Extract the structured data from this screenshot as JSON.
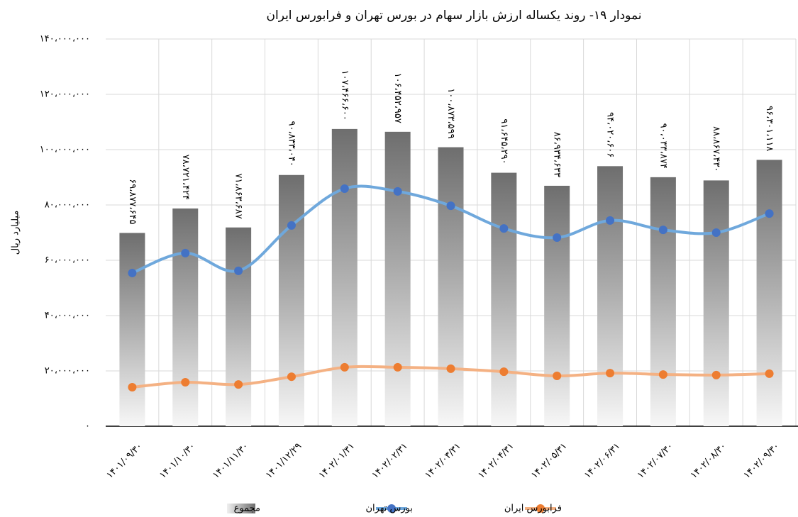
{
  "chart_data": {
    "type": "bar_line",
    "title": "نمودار ۱۹- روند یکساله ارزش بازار سهام در بورس تهران و فرابورس ایران",
    "y_label": "میلیارد ریال",
    "categories": [
      "۱۴۰۱/۰۹/۳۰",
      "۱۴۰۱/۱۰/۳۰",
      "۱۴۰۱/۱۱/۳۰",
      "۱۴۰۱/۱۲/۲۹",
      "۱۴۰۲/۰۱/۳۱",
      "۱۴۰۲/۰۲/۳۱",
      "۱۴۰۲/۰۳/۳۱",
      "۱۴۰۲/۰۴/۳۱",
      "۱۴۰۲/۰۵/۳۱",
      "۱۴۰۲/۰۶/۳۱",
      "۱۴۰۲/۰۷/۳۰",
      "۱۴۰۲/۰۸/۳۰",
      "۱۴۰۲/۰۹/۳۰"
    ],
    "series": [
      {
        "name": "مجموع",
        "type": "bar",
        "color": "#7f7f7f",
        "values": [
          69877645,
          78721424,
          71863687,
          90833040,
          107466600,
          106452957,
          100873599,
          91645290,
          86934633,
          94020606,
          90033874,
          88867430,
          96301118
        ],
        "value_labels": [
          "۶۹،۸۷۷،۶۴۵",
          "۷۸،۷۲۱،۴۲۴",
          "۷۱،۸۶۳،۶۸۷",
          "۹۰،۸۳۳،۰۴۰",
          "۱۰۷،۴۶۶،۶۰۰",
          "۱۰۶،۴۵۲،۹۵۷",
          "۱۰۰،۸۷۳،۵۹۹",
          "۹۱،۶۴۵،۲۹۰",
          "۸۶،۹۳۴،۶۳۳",
          "۹۴،۰۲۰،۶۰۶",
          "۹۰،۰۳۳،۸۷۴",
          "۸۸،۸۶۷،۴۳۰",
          "۹۶،۳۰۱،۱۱۸"
        ]
      },
      {
        "name": "بورس تهران",
        "type": "line",
        "color": "#4472c4",
        "line_color": "#6fa8dc",
        "values": [
          55400000,
          62600000,
          56200000,
          72600000,
          85900000,
          84900000,
          79700000,
          71500000,
          68200000,
          74400000,
          71000000,
          70000000,
          76900000
        ]
      },
      {
        "name": "فرابورس ایران",
        "type": "line",
        "color": "#ed7d31",
        "line_color": "#f4b183",
        "values": [
          14100000,
          15900000,
          15100000,
          17900000,
          21300000,
          21300000,
          20800000,
          19700000,
          18200000,
          19200000,
          18700000,
          18500000,
          19000000
        ]
      }
    ],
    "ylim": [
      0,
      140000000
    ],
    "yticks": [
      {
        "value": 0,
        "label": "۰"
      },
      {
        "value": 20000000,
        "label": "۲۰،۰۰۰،۰۰۰"
      },
      {
        "value": 40000000,
        "label": "۴۰،۰۰۰،۰۰۰"
      },
      {
        "value": 60000000,
        "label": "۶۰،۰۰۰،۰۰۰"
      },
      {
        "value": 80000000,
        "label": "۸۰،۰۰۰،۰۰۰"
      },
      {
        "value": 100000000,
        "label": "۱۰۰،۰۰۰،۰۰۰"
      },
      {
        "value": 120000000,
        "label": "۱۲۰،۰۰۰،۰۰۰"
      },
      {
        "value": 140000000,
        "label": "۱۴۰،۰۰۰،۰۰۰"
      }
    ],
    "grid": true,
    "legend": "bottom"
  }
}
